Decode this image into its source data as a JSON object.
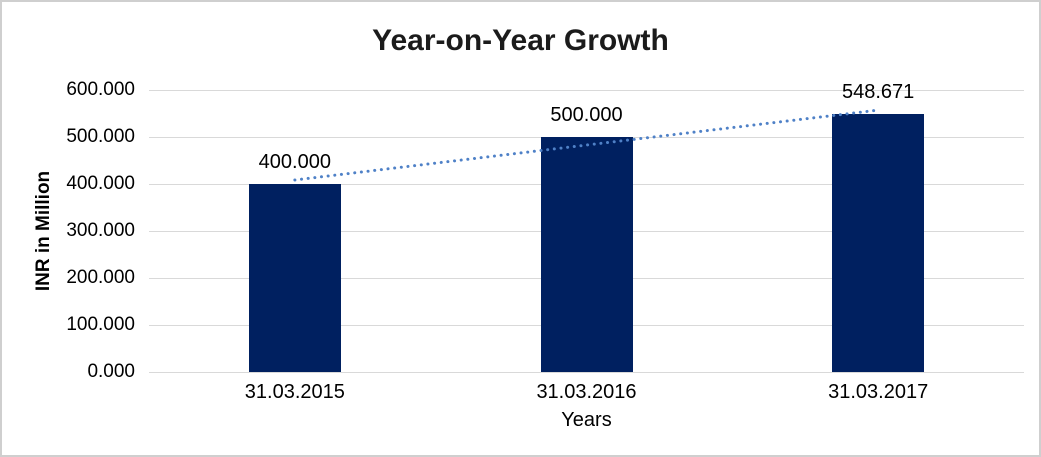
{
  "chart_data": {
    "type": "bar",
    "title": "Year-on-Year Growth",
    "xlabel": "Years",
    "ylabel": "INR in Million",
    "categories": [
      "31.03.2015",
      "31.03.2016",
      "31.03.2017"
    ],
    "values": [
      400.0,
      500.0,
      548.671
    ],
    "data_labels": [
      "400.000",
      "500.000",
      "548.671"
    ],
    "yticks": [
      0,
      100,
      200,
      300,
      400,
      500,
      600
    ],
    "ytick_labels": [
      "0.000",
      "100.000",
      "200.000",
      "300.000",
      "400.000",
      "500.000",
      "600.000"
    ],
    "ylim": [
      0,
      600
    ],
    "grid": true,
    "legend": "none",
    "bar_color": "#002060",
    "gridline_color": "#d9d9d9",
    "trendline": {
      "type": "linear",
      "style": "dotted",
      "color": "#4f81c7"
    }
  }
}
